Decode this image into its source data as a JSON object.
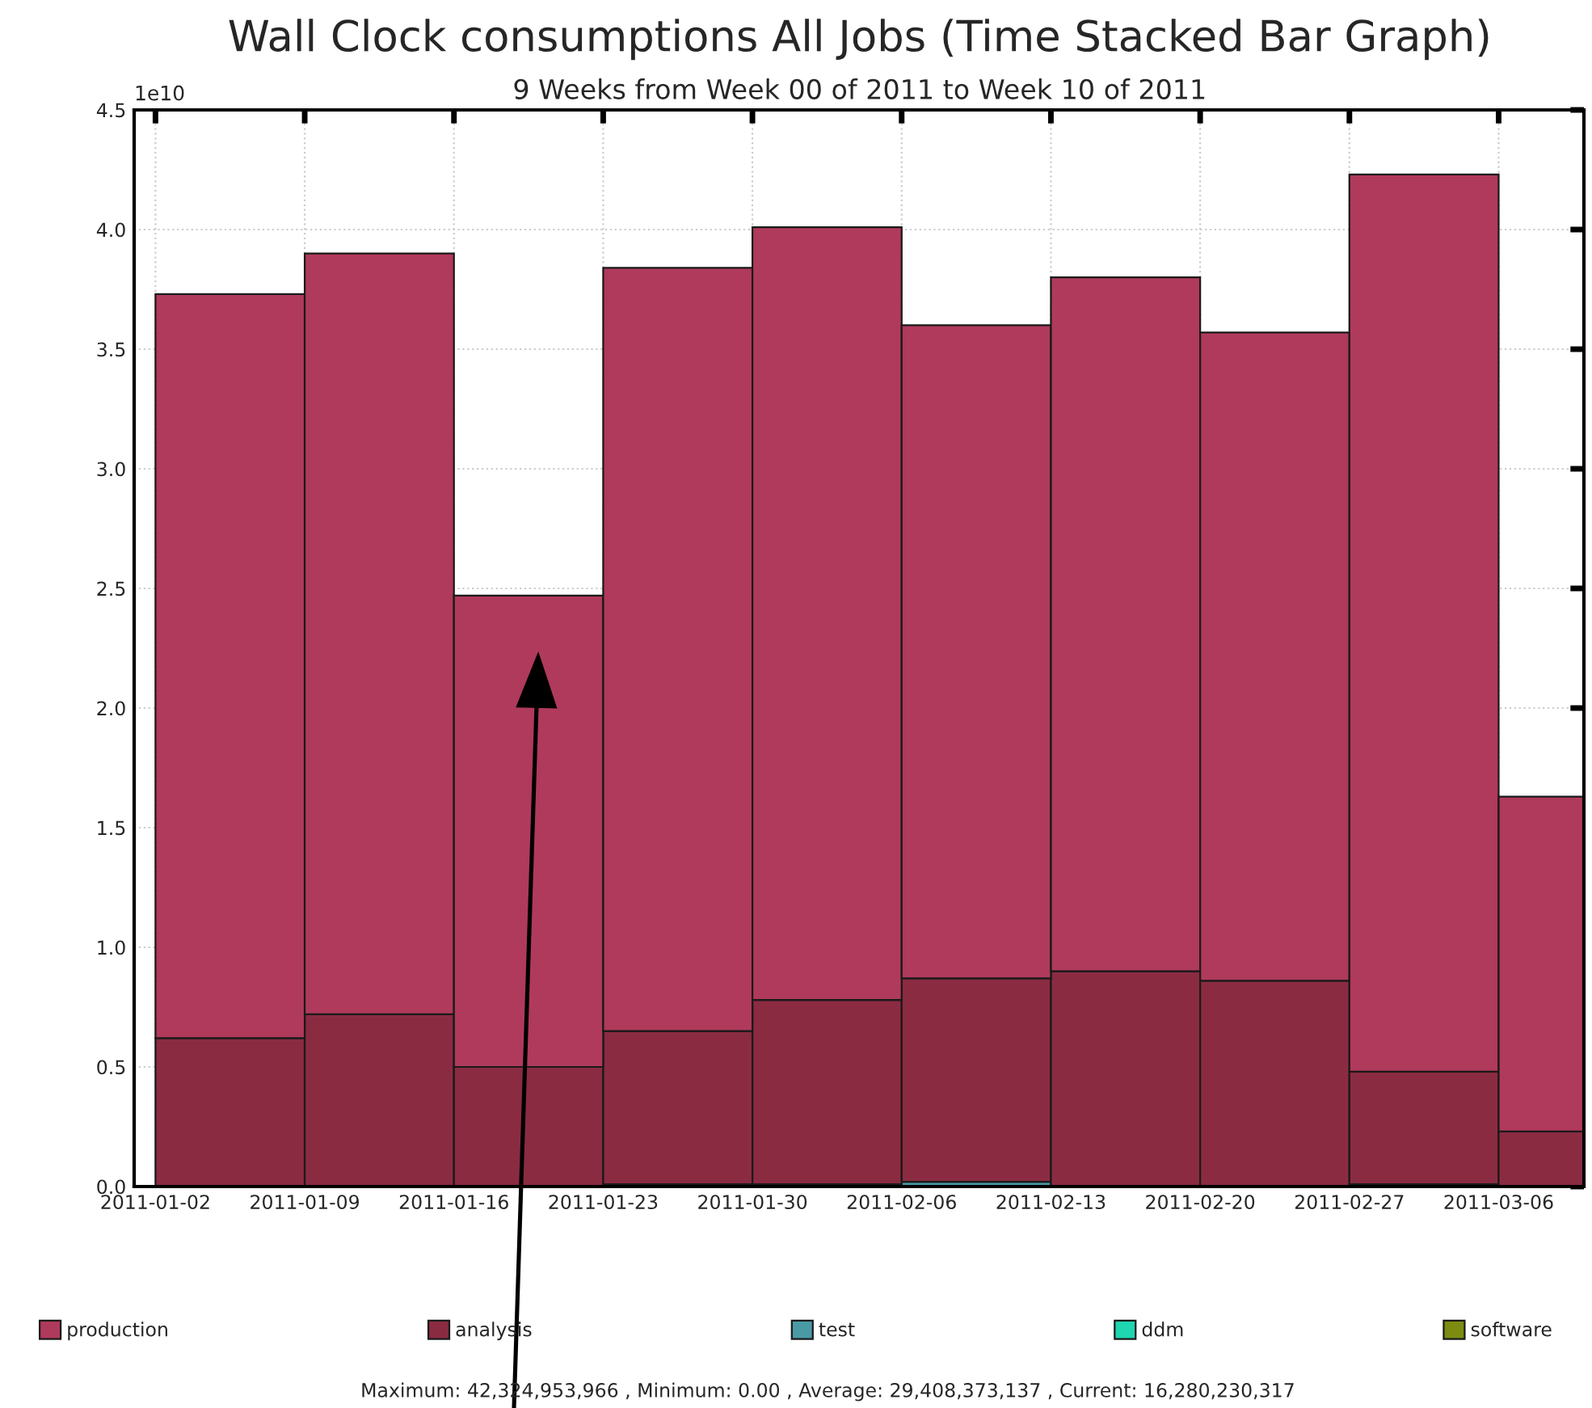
{
  "chart_data": {
    "type": "bar",
    "stacked": true,
    "title": "Wall Clock consumptions All Jobs (Time Stacked Bar Graph)",
    "subtitle": "9 Weeks from Week 00 of 2011 to Week 10 of 2011",
    "x": [
      "2011-01-05T12:00",
      "2011-01-12T12:00",
      "2011-01-19T12:00",
      "2011-01-26T12:00",
      "2011-02-02T12:00",
      "2011-02-09T12:00",
      "2011-02-16T12:00",
      "2011-02-23T12:00",
      "2011-03-02T12:00",
      "2011-03-09T12:00"
    ],
    "series": [
      {
        "name": "software",
        "color": "#7d8c10",
        "values": [
          0,
          0,
          0,
          0,
          0,
          0,
          0,
          0,
          0,
          0
        ]
      },
      {
        "name": "ddm",
        "color": "#1fd6b0",
        "values": [
          0,
          0,
          0,
          0,
          0,
          0,
          0,
          0,
          0,
          0
        ]
      },
      {
        "name": "test",
        "color": "#4a9aa5",
        "values": [
          0,
          0,
          0,
          0.01,
          0.01,
          0.02,
          0,
          0,
          0.01,
          0
        ]
      },
      {
        "name": "analysis",
        "color": "#8b2b42",
        "values": [
          0.62,
          0.72,
          0.5,
          0.64,
          0.77,
          0.85,
          0.9,
          0.86,
          0.47,
          0.23
        ]
      },
      {
        "name": "production",
        "color": "#b03a5b",
        "values": [
          3.11,
          3.18,
          1.97,
          3.19,
          3.23,
          2.73,
          2.9,
          2.71,
          3.75,
          1.4
        ]
      }
    ],
    "xlim": [
      "2011-01-01",
      "2011-03-10"
    ],
    "xticks": [
      "2011-01-02",
      "2011-01-09",
      "2011-01-16",
      "2011-01-23",
      "2011-01-30",
      "2011-02-06",
      "2011-02-13",
      "2011-02-20",
      "2011-02-27",
      "2011-03-06"
    ],
    "ylim": [
      0,
      4.5
    ],
    "yticks": [
      {
        "value": 0,
        "label": "0.0"
      },
      0.5,
      {
        "value": 1,
        "label": "1.0"
      },
      1.5,
      {
        "value": 2,
        "label": "2.0"
      },
      2.5,
      {
        "value": 3,
        "label": "3.0"
      },
      3.5,
      {
        "value": 4,
        "label": "4.0"
      },
      4.5
    ],
    "annotations": [
      "1e10",
      "Maximum: 42,324,953,966 , Minimum: 0.00 , Average: 29,408,373,137 , Current: 16,280,230,317"
    ],
    "grid": true,
    "legend": "bottom"
  }
}
